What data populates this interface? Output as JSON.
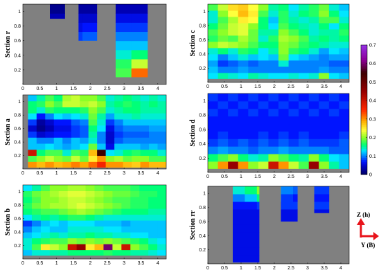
{
  "chart_data": [
    {
      "type": "heatmap",
      "label": "Section r",
      "xlim": [
        0,
        4.25
      ],
      "ylim": [
        0,
        1.1
      ],
      "xticks": [
        "0",
        "0.5",
        "1",
        "1.5",
        "2",
        "2.5",
        "3",
        "3.5",
        "4"
      ],
      "yticks": [
        "0.2",
        "0.4",
        "0.6",
        "0.8",
        "1"
      ],
      "mask": [
        {
          "x": [
            0.8,
            1.25
          ],
          "y": [
            0.9,
            1.1
          ]
        },
        {
          "x": [
            1.65,
            2.2
          ],
          "y": [
            0.6,
            1.1
          ]
        },
        {
          "x": [
            2.75,
            3.7
          ],
          "y": [
            0.1,
            1.1
          ]
        }
      ],
      "grid": [
        [
          0.13,
          0.15,
          0.14,
          0.16,
          0.18,
          0.32
        ],
        [
          0.12,
          0.14,
          0.13,
          0.15,
          0.17,
          0.22
        ],
        [
          0.11,
          0.12,
          0.12,
          0.13,
          0.14,
          0.16
        ],
        [
          0.09,
          0.1,
          0.1,
          0.11,
          0.12,
          0.12
        ],
        [
          0.08,
          0.08,
          0.09,
          0.09,
          0.1,
          0.1
        ],
        [
          0.06,
          0.06,
          0.07,
          0.07,
          0.08,
          0.08
        ],
        [
          0.04,
          0.05,
          0.05,
          0.05,
          0.06,
          0.06
        ],
        [
          0.02,
          0.03,
          0.03,
          0.03,
          0.04,
          0.04
        ]
      ]
    },
    {
      "type": "heatmap",
      "label": "Section c",
      "xlim": [
        0,
        4.25
      ],
      "ylim": [
        0,
        1.1
      ],
      "xticks": [
        "0",
        "0.5",
        "1",
        "1.5",
        "2",
        "2.5",
        "3",
        "3.5",
        "4"
      ],
      "yticks": [
        "0.2",
        "0.4",
        "0.6",
        "0.8",
        "1"
      ],
      "mask": [
        {
          "x": [
            0,
            4.25
          ],
          "y": [
            0.05,
            1.1
          ]
        }
      ],
      "grid": [
        [
          0.13,
          0.15,
          0.14,
          0.13,
          0.15,
          0.14,
          0.13,
          0.13,
          0.14,
          0.13,
          0.14,
          0.2,
          0.13,
          0.12
        ],
        [
          0.12,
          0.1,
          0.1,
          0.11,
          0.1,
          0.1,
          0.1,
          0.1,
          0.1,
          0.1,
          0.1,
          0.11,
          0.1,
          0.1
        ],
        [
          0.11,
          0.08,
          0.09,
          0.1,
          0.09,
          0.1,
          0.1,
          0.14,
          0.1,
          0.1,
          0.1,
          0.1,
          0.09,
          0.09
        ],
        [
          0.13,
          0.1,
          0.12,
          0.14,
          0.12,
          0.13,
          0.12,
          0.19,
          0.13,
          0.12,
          0.11,
          0.1,
          0.11,
          0.11
        ],
        [
          0.14,
          0.16,
          0.14,
          0.17,
          0.16,
          0.13,
          0.15,
          0.2,
          0.17,
          0.16,
          0.14,
          0.11,
          0.13,
          0.12
        ],
        [
          0.2,
          0.22,
          0.21,
          0.2,
          0.18,
          0.16,
          0.16,
          0.2,
          0.19,
          0.17,
          0.16,
          0.15,
          0.14,
          0.14
        ],
        [
          0.17,
          0.19,
          0.18,
          0.21,
          0.19,
          0.14,
          0.17,
          0.21,
          0.2,
          0.18,
          0.15,
          0.16,
          0.15,
          0.16
        ],
        [
          0.18,
          0.2,
          0.22,
          0.23,
          0.19,
          0.15,
          0.15,
          0.2,
          0.18,
          0.16,
          0.14,
          0.15,
          0.15,
          0.17
        ],
        [
          0.16,
          0.19,
          0.22,
          0.23,
          0.2,
          0.16,
          0.13,
          0.18,
          0.16,
          0.15,
          0.14,
          0.16,
          0.13,
          0.16
        ],
        [
          0.14,
          0.18,
          0.21,
          0.25,
          0.24,
          0.16,
          0.12,
          0.17,
          0.15,
          0.14,
          0.15,
          0.18,
          0.18,
          0.14
        ],
        [
          0.14,
          0.2,
          0.24,
          0.28,
          0.25,
          0.18,
          0.14,
          0.17,
          0.14,
          0.16,
          0.17,
          0.2,
          0.16,
          0.13
        ],
        [
          0.18,
          0.22,
          0.26,
          0.27,
          0.24,
          0.2,
          0.15,
          0.16,
          0.13,
          0.15,
          0.17,
          0.19,
          0.14,
          0.12
        ]
      ]
    },
    {
      "type": "heatmap",
      "label": "Section a",
      "xlim": [
        0,
        4.25
      ],
      "ylim": [
        0,
        1.1
      ],
      "xticks": [
        "0",
        "0.5",
        "1",
        "1.5",
        "2",
        "2.5",
        "3",
        "3.5",
        "4"
      ],
      "yticks": [
        "0.2",
        "0.4",
        "0.6",
        "0.8",
        "1"
      ],
      "mask": [
        {
          "x": [
            0.15,
            4.25
          ],
          "y": [
            0.02,
            1.1
          ]
        }
      ],
      "grid": [
        [
          0.3,
          0.28,
          0.3,
          0.28,
          0.29,
          0.31,
          0.29,
          0.32,
          0.36,
          0.3,
          0.3,
          0.28,
          0.27,
          0.3,
          0.28,
          0.28
        ],
        [
          0.18,
          0.2,
          0.22,
          0.2,
          0.19,
          0.22,
          0.19,
          0.25,
          0.3,
          0.2,
          0.21,
          0.19,
          0.2,
          0.2,
          0.18,
          0.18
        ],
        [
          0.4,
          0.16,
          0.18,
          0.18,
          0.14,
          0.18,
          0.17,
          0.28,
          0.55,
          0.13,
          0.14,
          0.16,
          0.17,
          0.16,
          0.16,
          0.14
        ],
        [
          0.12,
          0.12,
          0.13,
          0.12,
          0.11,
          0.12,
          0.13,
          0.19,
          0.12,
          0.06,
          0.12,
          0.12,
          0.12,
          0.11,
          0.12,
          0.11
        ],
        [
          0.12,
          0.1,
          0.1,
          0.12,
          0.1,
          0.12,
          0.11,
          0.14,
          0.1,
          0.05,
          0.09,
          0.1,
          0.1,
          0.1,
          0.1,
          0.1
        ],
        [
          0.08,
          0.05,
          0.06,
          0.07,
          0.07,
          0.08,
          0.09,
          0.15,
          0.1,
          0.05,
          0.08,
          0.09,
          0.09,
          0.09,
          0.1,
          0.1
        ],
        [
          0.05,
          0.02,
          0.04,
          0.06,
          0.06,
          0.08,
          0.09,
          0.16,
          0.13,
          0.06,
          0.09,
          0.1,
          0.1,
          0.1,
          0.11,
          0.11
        ],
        [
          0.08,
          0.03,
          0.05,
          0.07,
          0.07,
          0.09,
          0.1,
          0.18,
          0.14,
          0.08,
          0.1,
          0.12,
          0.12,
          0.12,
          0.12,
          0.12
        ],
        [
          0.13,
          0.07,
          0.1,
          0.13,
          0.12,
          0.13,
          0.14,
          0.19,
          0.15,
          0.11,
          0.14,
          0.14,
          0.15,
          0.14,
          0.14,
          0.14
        ],
        [
          0.16,
          0.14,
          0.17,
          0.16,
          0.16,
          0.16,
          0.17,
          0.2,
          0.18,
          0.14,
          0.15,
          0.16,
          0.16,
          0.15,
          0.15,
          0.15
        ],
        [
          0.16,
          0.17,
          0.2,
          0.18,
          0.22,
          0.22,
          0.21,
          0.22,
          0.2,
          0.15,
          0.16,
          0.17,
          0.16,
          0.15,
          0.16,
          0.15
        ],
        [
          0.12,
          0.15,
          0.18,
          0.16,
          0.21,
          0.22,
          0.2,
          0.2,
          0.18,
          0.14,
          0.15,
          0.16,
          0.15,
          0.14,
          0.15,
          0.14
        ]
      ]
    },
    {
      "type": "heatmap",
      "label": "Section d",
      "xlim": [
        0,
        4.25
      ],
      "ylim": [
        0,
        1.1
      ],
      "xticks": [
        "0",
        "0.5",
        "1",
        "1.5",
        "2",
        "2.5",
        "3",
        "3.5",
        "4"
      ],
      "yticks": [
        "0.2",
        "0.4",
        "0.6",
        "0.8",
        "1"
      ],
      "mask": [
        {
          "x": [
            0,
            4.25
          ],
          "y": [
            0.05,
            1.1
          ]
        }
      ],
      "grid": [
        [
          0.2,
          0.3,
          0.45,
          0.3,
          0.2,
          0.22,
          0.4,
          0.3,
          0.22,
          0.18,
          0.45,
          0.2,
          0.15,
          0.12
        ],
        [
          0.16,
          0.18,
          0.2,
          0.16,
          0.14,
          0.15,
          0.2,
          0.18,
          0.16,
          0.15,
          0.2,
          0.16,
          0.13,
          0.12
        ],
        [
          0.1,
          0.11,
          0.1,
          0.1,
          0.09,
          0.1,
          0.1,
          0.11,
          0.1,
          0.1,
          0.1,
          0.1,
          0.09,
          0.09
        ],
        [
          0.08,
          0.09,
          0.08,
          0.09,
          0.08,
          0.09,
          0.08,
          0.09,
          0.08,
          0.09,
          0.08,
          0.08,
          0.08,
          0.09
        ],
        [
          0.07,
          0.08,
          0.07,
          0.07,
          0.07,
          0.08,
          0.07,
          0.08,
          0.07,
          0.08,
          0.07,
          0.07,
          0.07,
          0.08
        ],
        [
          0.07,
          0.07,
          0.07,
          0.07,
          0.07,
          0.07,
          0.07,
          0.07,
          0.07,
          0.07,
          0.07,
          0.07,
          0.07,
          0.07
        ],
        [
          0.07,
          0.07,
          0.07,
          0.07,
          0.07,
          0.07,
          0.07,
          0.07,
          0.07,
          0.07,
          0.07,
          0.07,
          0.07,
          0.07
        ],
        [
          0.08,
          0.07,
          0.08,
          0.07,
          0.08,
          0.07,
          0.08,
          0.07,
          0.08,
          0.07,
          0.08,
          0.07,
          0.08,
          0.07
        ],
        [
          0.07,
          0.08,
          0.07,
          0.08,
          0.07,
          0.08,
          0.07,
          0.08,
          0.07,
          0.08,
          0.07,
          0.08,
          0.07,
          0.08
        ],
        [
          0.08,
          0.07,
          0.08,
          0.07,
          0.08,
          0.07,
          0.08,
          0.07,
          0.08,
          0.07,
          0.08,
          0.07,
          0.08,
          0.07
        ]
      ]
    },
    {
      "type": "heatmap",
      "label": "Section b",
      "xlim": [
        0,
        4.25
      ],
      "ylim": [
        0,
        1.1
      ],
      "xticks": [
        "0",
        "0.5",
        "1",
        "1.5",
        "2",
        "2.5",
        "3",
        "3.5",
        "4"
      ],
      "yticks": [
        "0.2",
        "0.4",
        "0.6",
        "0.8",
        "1"
      ],
      "mask": [
        {
          "x": [
            0,
            4.25
          ],
          "y": [
            0.05,
            1.1
          ]
        }
      ],
      "grid": [
        [
          0.12,
          0.14,
          0.14,
          0.15,
          0.15,
          0.16,
          0.16,
          0.16,
          0.16,
          0.17,
          0.16,
          0.16,
          0.15,
          0.15,
          0.14,
          0.13
        ],
        [
          0.14,
          0.18,
          0.25,
          0.22,
          0.2,
          0.4,
          0.45,
          0.25,
          0.28,
          0.6,
          0.22,
          0.4,
          0.2,
          0.18,
          0.16,
          0.14
        ],
        [
          0.14,
          0.16,
          0.17,
          0.18,
          0.18,
          0.2,
          0.19,
          0.2,
          0.19,
          0.2,
          0.19,
          0.18,
          0.17,
          0.16,
          0.14,
          0.13
        ],
        [
          0.12,
          0.13,
          0.14,
          0.15,
          0.14,
          0.15,
          0.15,
          0.16,
          0.15,
          0.15,
          0.14,
          0.14,
          0.13,
          0.13,
          0.12,
          0.12
        ],
        [
          0.1,
          0.12,
          0.13,
          0.12,
          0.12,
          0.14,
          0.14,
          0.14,
          0.14,
          0.13,
          0.13,
          0.12,
          0.12,
          0.12,
          0.12,
          0.12
        ],
        [
          0.08,
          0.1,
          0.12,
          0.13,
          0.12,
          0.13,
          0.13,
          0.13,
          0.12,
          0.12,
          0.12,
          0.11,
          0.12,
          0.12,
          0.12,
          0.12
        ],
        [
          0.13,
          0.15,
          0.16,
          0.15,
          0.16,
          0.17,
          0.17,
          0.16,
          0.15,
          0.14,
          0.14,
          0.14,
          0.14,
          0.14,
          0.14,
          0.14
        ],
        [
          0.16,
          0.17,
          0.18,
          0.18,
          0.19,
          0.2,
          0.21,
          0.2,
          0.19,
          0.18,
          0.17,
          0.16,
          0.16,
          0.16,
          0.15,
          0.15
        ],
        [
          0.17,
          0.19,
          0.2,
          0.21,
          0.21,
          0.22,
          0.23,
          0.22,
          0.21,
          0.2,
          0.19,
          0.18,
          0.17,
          0.17,
          0.16,
          0.16
        ],
        [
          0.16,
          0.18,
          0.2,
          0.2,
          0.21,
          0.22,
          0.22,
          0.21,
          0.2,
          0.19,
          0.18,
          0.18,
          0.17,
          0.17,
          0.16,
          0.16
        ],
        [
          0.17,
          0.19,
          0.2,
          0.21,
          0.22,
          0.23,
          0.23,
          0.22,
          0.21,
          0.2,
          0.19,
          0.19,
          0.18,
          0.17,
          0.17,
          0.16
        ],
        [
          0.13,
          0.15,
          0.18,
          0.2,
          0.2,
          0.21,
          0.21,
          0.2,
          0.19,
          0.18,
          0.18,
          0.18,
          0.17,
          0.16,
          0.16,
          0.16
        ]
      ]
    },
    {
      "type": "heatmap",
      "label": "Section rr",
      "xlim": [
        0,
        4.25
      ],
      "ylim": [
        0,
        1.1
      ],
      "xticks": [
        "0",
        "0.5",
        "1",
        "1.5",
        "2",
        "2.5",
        "3",
        "3.5",
        "4"
      ],
      "yticks": [
        "0.2",
        "0.4",
        "0.6",
        "0.8",
        "1"
      ],
      "mask": [
        {
          "x": [
            0.75,
            1.55
          ],
          "y": [
            0.02,
            1.1
          ]
        },
        {
          "x": [
            2.2,
            2.7
          ],
          "y": [
            0.6,
            1.1
          ]
        },
        {
          "x": [
            3.2,
            3.65
          ],
          "y": [
            0.72,
            1.1
          ]
        }
      ],
      "grid": [
        [
          0.06,
          0.06,
          0.06,
          0.06,
          0.06,
          0.06,
          0.06,
          0.06
        ],
        [
          0.06,
          0.06,
          0.06,
          0.06,
          0.06,
          0.06,
          0.06,
          0.06
        ],
        [
          0.06,
          0.06,
          0.06,
          0.06,
          0.06,
          0.06,
          0.06,
          0.06
        ],
        [
          0.06,
          0.06,
          0.06,
          0.06,
          0.06,
          0.06,
          0.06,
          0.06
        ],
        [
          0.06,
          0.06,
          0.06,
          0.06,
          0.06,
          0.06,
          0.06,
          0.06
        ],
        [
          0.06,
          0.06,
          0.06,
          0.06,
          0.06,
          0.06,
          0.06,
          0.06
        ],
        [
          0.06,
          0.06,
          0.06,
          0.06,
          0.06,
          0.06,
          0.06,
          0.06
        ],
        [
          0.07,
          0.07,
          0.08,
          0.08,
          0.08,
          0.08,
          0.08,
          0.08
        ],
        [
          0.1,
          0.12,
          0.16,
          0.13,
          0.08,
          0.07,
          0.07,
          0.07
        ],
        [
          0.14,
          0.16,
          0.2,
          0.16,
          0.1,
          0.09,
          0.08,
          0.08
        ]
      ]
    }
  ],
  "colorbar": {
    "ticks": [
      "0",
      "0.1",
      "0.2",
      "0.3",
      "0.4",
      "0.5",
      "0.6",
      "0.7"
    ],
    "range": [
      0,
      0.7
    ]
  },
  "axes_indicator": {
    "z_label": "Z (h)",
    "y_label": "Y (B)",
    "arrow_color": "#e8141b"
  }
}
